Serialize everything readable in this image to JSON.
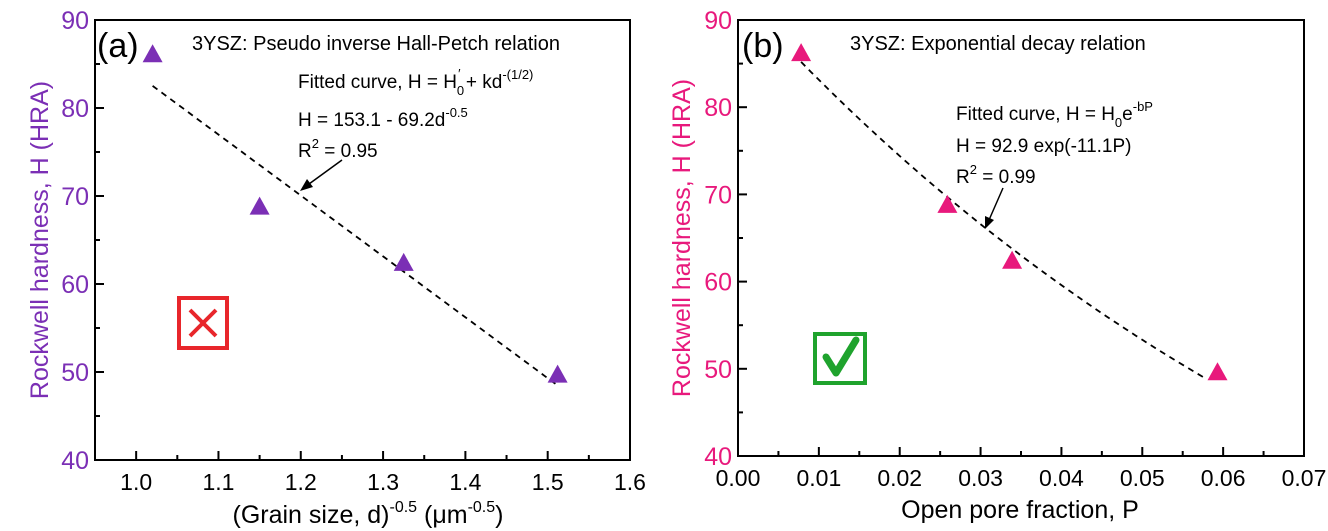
{
  "chart_data": [
    {
      "type": "scatter",
      "panel_label": "(a)",
      "title": "3YSZ: Pseudo inverse Hall-Petch relation",
      "xlabel": "(Grain size, d)-0.5 (μm-0.5)",
      "ylabel": "Rockwell hardness, H (HRA)",
      "xlim": [
        0.95,
        1.6
      ],
      "ylim": [
        40,
        90
      ],
      "xticks": [
        "1.0",
        "1.1",
        "1.2",
        "1.3",
        "1.4",
        "1.5",
        "1.6"
      ],
      "yticks": [
        "40",
        "50",
        "60",
        "70",
        "80",
        "90"
      ],
      "color": "#7b2fb5",
      "series": [
        {
          "marker": "triangle",
          "x": [
            1.02,
            1.15,
            1.325,
            1.512
          ],
          "y": [
            86.1,
            68.8,
            62.4,
            49.7
          ]
        }
      ],
      "fit": {
        "type": "linear",
        "intercept": 153.1,
        "slope": -69.2,
        "x_range": [
          1.02,
          1.51
        ]
      },
      "annotations": [
        "Fitted curve, H = H0′ + kd-(1/2)",
        "H = 153.1 - 69.2d-0.5",
        "R2 = 0.95"
      ],
      "badge": {
        "symbol": "✕",
        "color": "#e8262b"
      }
    },
    {
      "type": "scatter",
      "panel_label": "(b)",
      "title": "3YSZ: Exponential decay relation",
      "xlabel": "Open pore fraction, P",
      "ylabel": "Rockwell hardness, H (HRA)",
      "xlim": [
        0.0,
        0.07
      ],
      "ylim": [
        40,
        90
      ],
      "xticks": [
        "0.00",
        "0.01",
        "0.02",
        "0.03",
        "0.04",
        "0.05",
        "0.06",
        "0.07"
      ],
      "yticks": [
        "40",
        "50",
        "60",
        "70",
        "80",
        "90"
      ],
      "color": "#e8197c",
      "series": [
        {
          "marker": "triangle",
          "x": [
            0.0078,
            0.0259,
            0.0339,
            0.0593
          ],
          "y": [
            86.2,
            68.8,
            62.4,
            49.6
          ]
        }
      ],
      "fit": {
        "type": "exponential",
        "a": 92.9,
        "b": -11.1,
        "x_range": [
          0.0078,
          0.058
        ]
      },
      "annotations": [
        "Fitted curve, H = H0e-bP",
        "H = 92.9 exp(-11.1P)",
        "R2 = 0.99"
      ],
      "badge": {
        "symbol": "✓",
        "color": "#1fa32d"
      }
    }
  ]
}
